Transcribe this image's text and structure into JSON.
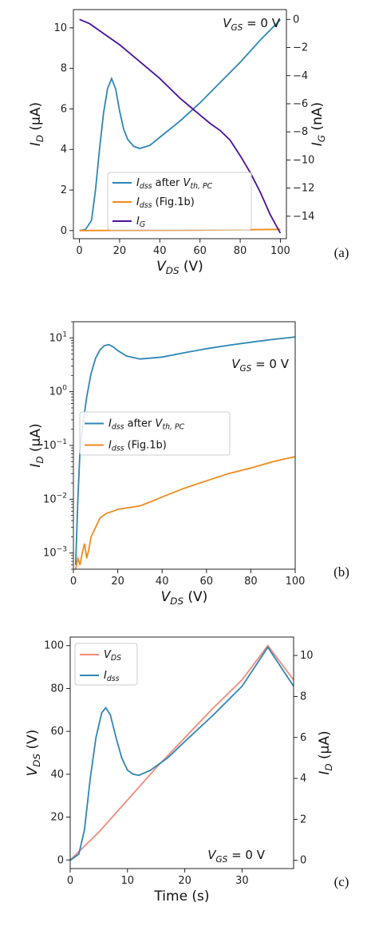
{
  "panels": [
    {
      "tag": "(a)",
      "annotation_main": "V",
      "annotation_sub": "GS",
      "annotation_rest": " = 0 V",
      "legend": [
        {
          "main": "I",
          "sub": "dss",
          "rest": " after V",
          "sub2": "th, PC",
          "color": "#2e86b5"
        },
        {
          "main": "I",
          "sub": "dss",
          "rest": " (Fig.1b)",
          "sub2": "",
          "color": "#f28a1d"
        },
        {
          "main": "I",
          "sub": "G",
          "rest": "",
          "sub2": "",
          "color": "#4b0f99"
        }
      ]
    },
    {
      "tag": "(b)",
      "annotation_main": "V",
      "annotation_sub": "GS",
      "annotation_rest": " = 0 V",
      "legend": [
        {
          "main": "I",
          "sub": "dss",
          "rest": " after V",
          "sub2": "th, PC",
          "color": "#2e86b5"
        },
        {
          "main": "I",
          "sub": "dss",
          "rest": " (Fig.1b)",
          "sub2": "",
          "color": "#f28a1d"
        }
      ]
    },
    {
      "tag": "(c)",
      "annotation_main": "V",
      "annotation_sub": "GS",
      "annotation_rest": " = 0 V",
      "legend": [
        {
          "main": "V",
          "sub": "DS",
          "rest": "",
          "sub2": "",
          "color": "#f08a78"
        },
        {
          "main": "I",
          "sub": "dss",
          "rest": "",
          "sub2": "",
          "color": "#2e86b5"
        }
      ]
    }
  ],
  "chart_data": [
    {
      "type": "line",
      "xlabel": {
        "main": "V",
        "sub": "DS",
        "rest": " (V)"
      },
      "ylabel": {
        "main": "I",
        "sub": "D",
        "rest": " (μA)"
      },
      "y2label": {
        "main": "I",
        "sub": "G",
        "rest": " (nA)"
      },
      "xlim": [
        -3,
        103
      ],
      "ylim": [
        -0.4,
        10.9
      ],
      "y2lim": [
        -15.6,
        0.7
      ],
      "xticks": [
        0,
        20,
        40,
        60,
        80,
        100
      ],
      "yticks": [
        0,
        2,
        4,
        6,
        8,
        10
      ],
      "y2ticks": [
        0,
        -2,
        -4,
        -6,
        -8,
        -10,
        -12,
        -14
      ],
      "series": [
        {
          "name": "I_dss after V_th,PC",
          "axis": "left",
          "color": "#2e86b5",
          "x": [
            0,
            3,
            6,
            8,
            10,
            12,
            14,
            16,
            18,
            20,
            22,
            24,
            27,
            30,
            35,
            40,
            50,
            60,
            70,
            80,
            90,
            100
          ],
          "y": [
            0,
            0.05,
            0.5,
            2.0,
            4.0,
            5.8,
            7.0,
            7.5,
            7.0,
            5.9,
            5.0,
            4.5,
            4.15,
            4.05,
            4.2,
            4.6,
            5.4,
            6.3,
            7.3,
            8.3,
            9.4,
            10.4
          ]
        },
        {
          "name": "I_dss (Fig.1b)",
          "axis": "left",
          "color": "#f28a1d",
          "x": [
            0,
            20,
            40,
            60,
            80,
            100
          ],
          "y": [
            0,
            0.01,
            0.015,
            0.02,
            0.04,
            0.06
          ]
        },
        {
          "name": "I_G",
          "axis": "right",
          "color": "#4b0f99",
          "x": [
            0,
            5,
            10,
            15,
            20,
            25,
            30,
            35,
            40,
            45,
            50,
            55,
            60,
            65,
            70,
            75,
            80,
            85,
            90,
            95,
            100
          ],
          "y": [
            0,
            -0.3,
            -0.8,
            -1.3,
            -1.8,
            -2.4,
            -3.0,
            -3.6,
            -4.2,
            -4.9,
            -5.6,
            -6.2,
            -6.8,
            -7.4,
            -7.9,
            -8.6,
            -9.7,
            -10.9,
            -12.3,
            -13.9,
            -15.2
          ]
        }
      ]
    },
    {
      "type": "line",
      "yscale": "log",
      "xlabel": {
        "main": "V",
        "sub": "DS",
        "rest": " (V)"
      },
      "ylabel": {
        "main": "I",
        "sub": "D",
        "rest": " (μA)"
      },
      "xlim": [
        0,
        100
      ],
      "ylim": [
        0.0005,
        20
      ],
      "xticks": [
        0,
        20,
        40,
        60,
        80,
        100
      ],
      "yticks_log": [
        {
          "value": 10,
          "base": "10",
          "exp": "1"
        },
        {
          "value": 1,
          "base": "10",
          "exp": "0"
        },
        {
          "value": 0.1,
          "base": "10",
          "exp": "−1"
        },
        {
          "value": 0.01,
          "base": "10",
          "exp": "−2"
        },
        {
          "value": 0.001,
          "base": "10",
          "exp": "−3"
        }
      ],
      "series": [
        {
          "name": "I_dss after V_th,PC",
          "color": "#2e86b5",
          "x": [
            1,
            2,
            3,
            4,
            5,
            6,
            8,
            10,
            12,
            14,
            16,
            18,
            20,
            24,
            30,
            40,
            50,
            60,
            70,
            80,
            90,
            100
          ],
          "y": [
            0.0006,
            0.01,
            0.08,
            0.2,
            0.4,
            0.8,
            2.2,
            4.2,
            6.0,
            7.2,
            7.5,
            6.8,
            5.8,
            4.6,
            4.05,
            4.4,
            5.3,
            6.3,
            7.3,
            8.3,
            9.4,
            10.4
          ]
        },
        {
          "name": "I_dss (Fig.1b)",
          "color": "#f28a1d",
          "x": [
            1,
            2,
            3,
            4,
            5,
            6,
            7,
            8,
            10,
            12,
            15,
            18,
            20,
            25,
            30,
            35,
            40,
            50,
            60,
            70,
            80,
            90,
            100
          ],
          "y": [
            0.0005,
            0.0008,
            0.0006,
            0.001,
            0.0015,
            0.0008,
            0.0012,
            0.002,
            0.003,
            0.0045,
            0.0055,
            0.006,
            0.0065,
            0.007,
            0.0075,
            0.009,
            0.011,
            0.016,
            0.022,
            0.03,
            0.038,
            0.05,
            0.062
          ]
        }
      ]
    },
    {
      "type": "line",
      "xlabel": {
        "main": "Time (s)",
        "sub": "",
        "rest": ""
      },
      "ylabel": {
        "main": "V",
        "sub": "DS",
        "rest": " (V)"
      },
      "y2label": {
        "main": "I",
        "sub": "D",
        "rest": " (μA)"
      },
      "xlim": [
        0,
        39
      ],
      "ylim": [
        -4,
        104
      ],
      "y2lim": [
        -0.4,
        10.9
      ],
      "xticks": [
        0,
        10,
        20,
        30
      ],
      "yticks": [
        0,
        20,
        40,
        60,
        80,
        100
      ],
      "y2ticks": [
        0,
        2,
        4,
        6,
        8,
        10
      ],
      "series": [
        {
          "name": "V_DS",
          "axis": "left",
          "color": "#f08a78",
          "x": [
            0,
            5,
            10,
            15,
            20,
            25,
            30,
            34.5,
            39
          ],
          "y": [
            0,
            13,
            28,
            43,
            57,
            71,
            84,
            100,
            84
          ]
        },
        {
          "name": "I_dss",
          "axis": "right",
          "color": "#2e86b5",
          "x": [
            0,
            1.5,
            2.5,
            3.5,
            4.5,
            5.5,
            6.2,
            7,
            8,
            9,
            10,
            11,
            12,
            14,
            17,
            20,
            25,
            30,
            34.5,
            39
          ],
          "y": [
            0,
            0.3,
            1.5,
            4.0,
            6.0,
            7.2,
            7.45,
            7.1,
            6.0,
            5.0,
            4.4,
            4.2,
            4.15,
            4.4,
            5.0,
            5.8,
            7.1,
            8.5,
            10.4,
            8.5
          ]
        }
      ]
    }
  ]
}
